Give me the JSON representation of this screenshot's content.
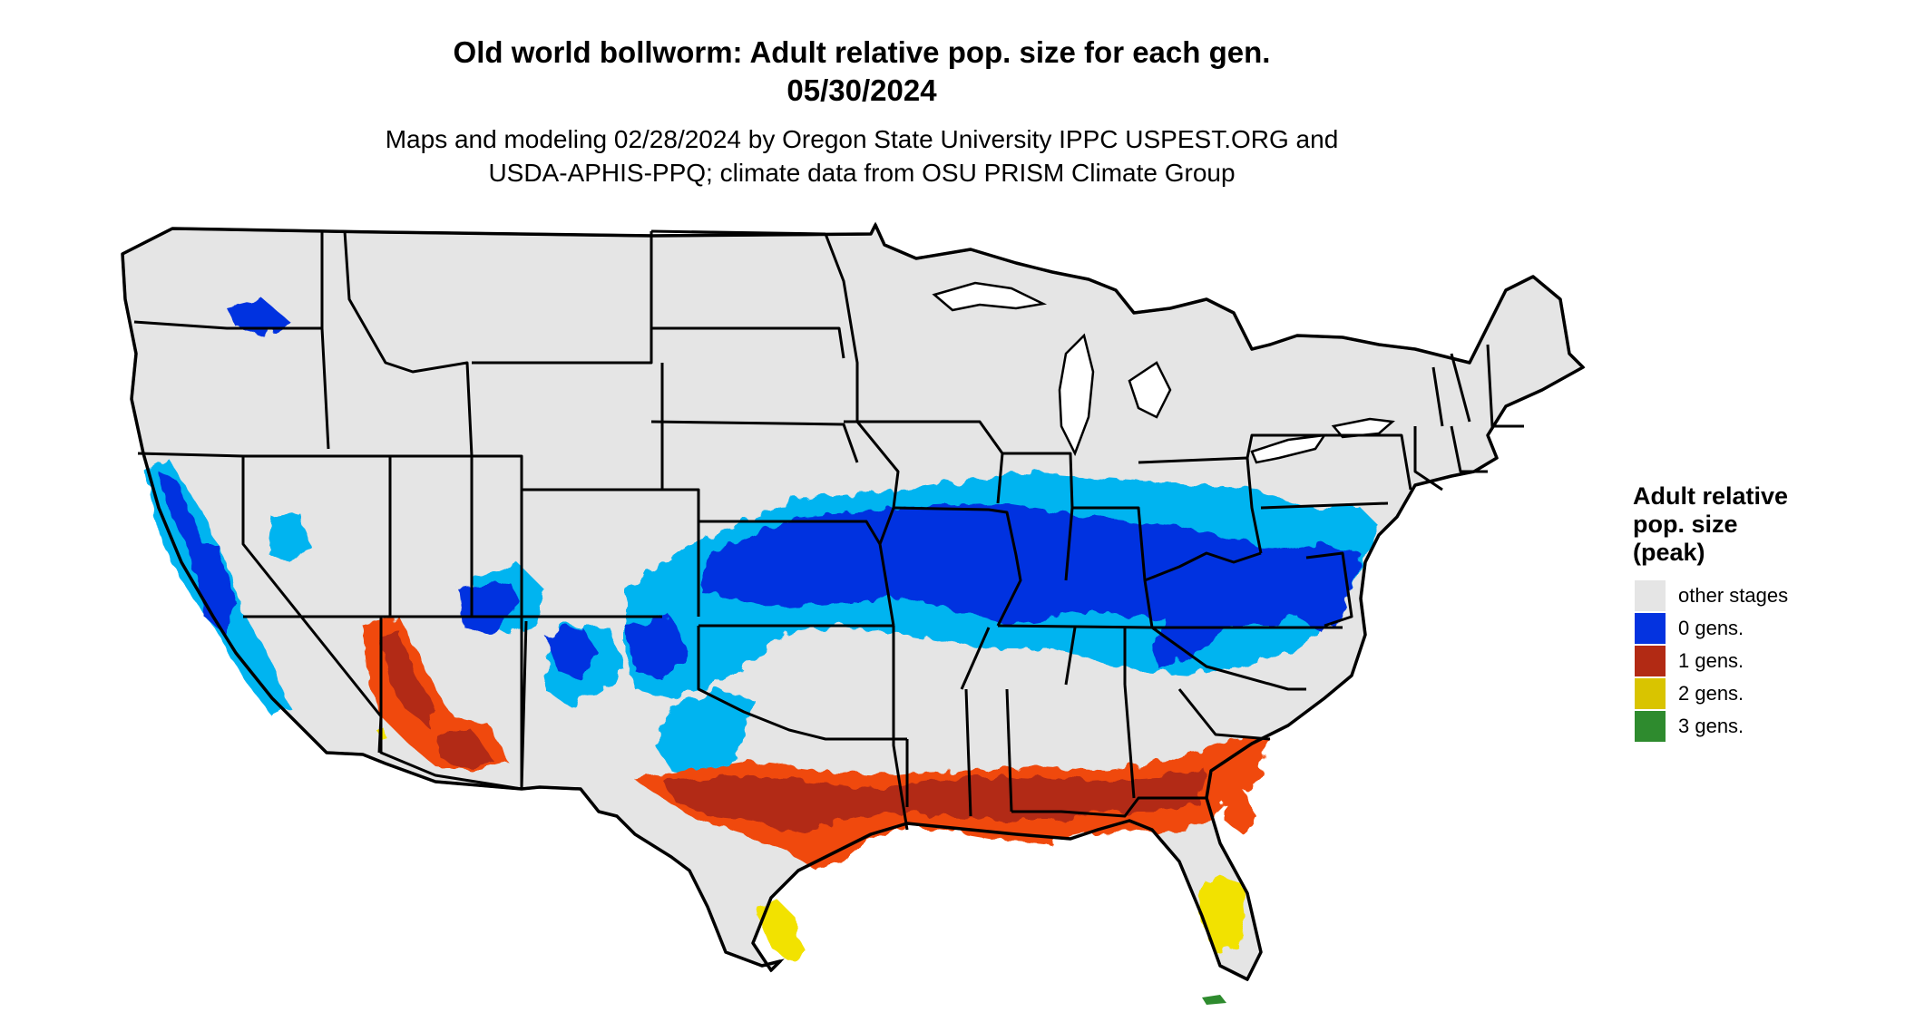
{
  "title": {
    "line1": "Old world bollworm: Adult relative pop. size for each gen.",
    "line2": "05/30/2024"
  },
  "subtitle": {
    "line1": "Maps and modeling 02/28/2024 by Oregon State University IPPC USPEST.ORG and",
    "line2": "USDA-APHIS-PPQ; climate data from OSU PRISM Climate Group"
  },
  "legend": {
    "title_line1": "Adult relative",
    "title_line2": "pop. size",
    "title_line3": "(peak)",
    "items": [
      {
        "label": "other stages",
        "color": "#e5e5e5"
      },
      {
        "label": "0 gens.",
        "color": "#0433e0"
      },
      {
        "label": "1 gens.",
        "color": "#b22a14"
      },
      {
        "label": "2 gens.",
        "color": "#d9c400"
      },
      {
        "label": "3 gens.",
        "color": "#2e8b2e"
      }
    ]
  },
  "colors": {
    "land": "#e5e5e5",
    "gen0_dark": "#0433e0",
    "gen0_light": "#00b4f0",
    "gen1_dark": "#b22a14",
    "gen1_light": "#f04a0c",
    "gen2": "#f2e200",
    "gen3": "#2e8b2e",
    "border": "#000000"
  }
}
